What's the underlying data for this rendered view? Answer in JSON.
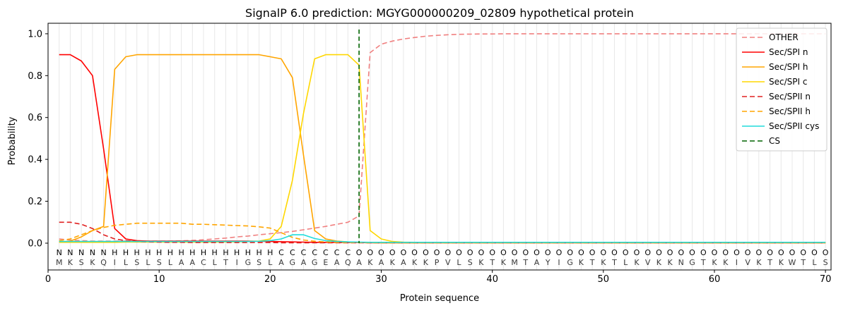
{
  "chart_data": {
    "type": "line",
    "title": "SignalP 6.0 prediction: MGYG000000209_02809 hypothetical protein",
    "xlabel": "Protein sequence",
    "ylabel": "Probability",
    "xlim": [
      0,
      70.5
    ],
    "ylim": [
      -0.128,
      1.05
    ],
    "grid": "vertical-per-residue",
    "legend_position": "upper right",
    "xticks": [
      {
        "value": 0,
        "label": "0"
      },
      {
        "value": 10,
        "label": "10"
      },
      {
        "value": 20,
        "label": "20"
      },
      {
        "value": 30,
        "label": "30"
      },
      {
        "value": 40,
        "label": "40"
      },
      {
        "value": 50,
        "label": "50"
      },
      {
        "value": 60,
        "label": "60"
      },
      {
        "value": 70,
        "label": "70"
      }
    ],
    "yticks": [
      {
        "value": 0.0,
        "label": "0.0"
      },
      {
        "value": 0.2,
        "label": "0.2"
      },
      {
        "value": 0.4,
        "label": "0.4"
      },
      {
        "value": 0.6,
        "label": "0.6"
      },
      {
        "value": 0.8,
        "label": "0.8"
      },
      {
        "value": 1.0,
        "label": "1.0"
      }
    ],
    "sequence": "MKSKQILSLSLAACLTIGSLAGAGEAQAKAKAKKPVLSKTKMTAYIGKTKTLKVKKNGTKKIVKTKWTLS",
    "regions": "NNNNNHHHHHHHHHHHHHHHCCCCCCCOOOOOOOOOOOOOOOOOOOOOOOOOOOOOOOOOOOOOOOOOOO",
    "cs": {
      "label": "CS",
      "position": 28,
      "color": "#006400",
      "dashed": true
    },
    "colors": {
      "grid": "#e8e8e8",
      "axis": "#000000",
      "sequence_letters": "#3a3a3a",
      "regions": {
        "N": "#ff0000",
        "H": "#ffa500",
        "C": "#ffd700",
        "O": "#999999"
      }
    },
    "series": [
      {
        "label": "OTHER",
        "color": "#f08080",
        "dashed": true,
        "values": [
          0.02,
          0.015,
          0.012,
          0.01,
          0.01,
          0.01,
          0.01,
          0.01,
          0.01,
          0.01,
          0.01,
          0.011,
          0.013,
          0.016,
          0.02,
          0.024,
          0.03,
          0.034,
          0.04,
          0.045,
          0.05,
          0.056,
          0.064,
          0.072,
          0.08,
          0.09,
          0.1,
          0.13,
          0.91,
          0.95,
          0.965,
          0.975,
          0.982,
          0.988,
          0.992,
          0.995,
          0.997,
          0.998,
          0.999,
          0.999,
          1,
          1,
          1,
          1,
          1,
          1,
          1,
          1,
          1,
          1,
          1,
          1,
          1,
          1,
          1,
          1,
          1,
          1,
          1,
          1,
          1,
          1,
          1,
          1,
          1,
          1,
          1,
          1,
          1,
          1
        ]
      },
      {
        "label": "Sec/SPI n",
        "color": "#ff0000",
        "dashed": false,
        "values": [
          0.9,
          0.9,
          0.87,
          0.8,
          0.45,
          0.07,
          0.02,
          0.012,
          0.01,
          0.01,
          0.01,
          0.01,
          0.01,
          0.01,
          0.01,
          0.01,
          0.01,
          0.01,
          0.009,
          0.008,
          0.007,
          0.006,
          0.005,
          0.004,
          0.004,
          0.003,
          0.003,
          0.003,
          0.002,
          0.002,
          0.002,
          0.002,
          0.002,
          0.002,
          0.002,
          0.002,
          0.002,
          0.002,
          0.002,
          0.002,
          0.002,
          0.002,
          0.002,
          0.002,
          0.002,
          0.002,
          0.002,
          0.002,
          0.002,
          0.002,
          0.002,
          0.002,
          0.002,
          0.002,
          0.002,
          0.002,
          0.002,
          0.002,
          0.002,
          0.002,
          0.002,
          0.002,
          0.002,
          0.002,
          0.002,
          0.002,
          0.002,
          0.002,
          0.002,
          0.002
        ]
      },
      {
        "label": "Sec/SPI h",
        "color": "#ffa500",
        "dashed": false,
        "values": [
          0.005,
          0.01,
          0.03,
          0.06,
          0.08,
          0.83,
          0.89,
          0.9,
          0.9,
          0.9,
          0.9,
          0.9,
          0.9,
          0.9,
          0.9,
          0.9,
          0.9,
          0.9,
          0.9,
          0.89,
          0.88,
          0.79,
          0.42,
          0.06,
          0.02,
          0.01,
          0.006,
          0.004,
          0.003,
          0.002,
          0.002,
          0.002,
          0.002,
          0.002,
          0.002,
          0.002,
          0.002,
          0.002,
          0.002,
          0.002,
          0.002,
          0.002,
          0.002,
          0.002,
          0.002,
          0.002,
          0.002,
          0.002,
          0.002,
          0.002,
          0.002,
          0.002,
          0.002,
          0.002,
          0.002,
          0.002,
          0.002,
          0.002,
          0.002,
          0.002,
          0.002,
          0.002,
          0.002,
          0.002,
          0.002,
          0.002,
          0.002,
          0.002,
          0.002,
          0.002
        ]
      },
      {
        "label": "Sec/SPI c",
        "color": "#ffd700",
        "dashed": false,
        "values": [
          0.004,
          0.004,
          0.004,
          0.004,
          0.004,
          0.004,
          0.005,
          0.005,
          0.005,
          0.005,
          0.005,
          0.005,
          0.005,
          0.005,
          0.005,
          0.006,
          0.006,
          0.008,
          0.01,
          0.02,
          0.08,
          0.3,
          0.62,
          0.88,
          0.9,
          0.9,
          0.9,
          0.85,
          0.06,
          0.02,
          0.008,
          0.005,
          0.004,
          0.004,
          0.004,
          0.004,
          0.004,
          0.004,
          0.004,
          0.004,
          0.004,
          0.004,
          0.004,
          0.004,
          0.004,
          0.004,
          0.004,
          0.004,
          0.004,
          0.004,
          0.004,
          0.004,
          0.004,
          0.004,
          0.004,
          0.004,
          0.004,
          0.004,
          0.004,
          0.004,
          0.004,
          0.004,
          0.004,
          0.004,
          0.004,
          0.004,
          0.004,
          0.004,
          0.004,
          0.004
        ]
      },
      {
        "label": "Sec/SPII n",
        "color": "#e02020",
        "dashed": true,
        "values": [
          0.1,
          0.1,
          0.09,
          0.07,
          0.04,
          0.02,
          0.012,
          0.008,
          0.006,
          0.005,
          0.004,
          0.004,
          0.003,
          0.003,
          0.003,
          0.003,
          0.003,
          0.003,
          0.003,
          0.003,
          0.002,
          0.002,
          0.002,
          0.002,
          0.002,
          0.002,
          0.002,
          0.002,
          0.002,
          0.002,
          0.002,
          0.002,
          0.002,
          0.002,
          0.002,
          0.002,
          0.002,
          0.002,
          0.002,
          0.002,
          0.002,
          0.002,
          0.002,
          0.002,
          0.002,
          0.002,
          0.002,
          0.002,
          0.002,
          0.002,
          0.002,
          0.002,
          0.002,
          0.002,
          0.002,
          0.002,
          0.002,
          0.002,
          0.002,
          0.002,
          0.002,
          0.002,
          0.002,
          0.002,
          0.002,
          0.002,
          0.002,
          0.002,
          0.002,
          0.002
        ]
      },
      {
        "label": "Sec/SPII h",
        "color": "#ffa500",
        "dashed": true,
        "values": [
          0.012,
          0.02,
          0.04,
          0.06,
          0.075,
          0.085,
          0.09,
          0.095,
          0.095,
          0.095,
          0.095,
          0.095,
          0.09,
          0.09,
          0.088,
          0.086,
          0.084,
          0.082,
          0.078,
          0.072,
          0.05,
          0.028,
          0.015,
          0.009,
          0.006,
          0.004,
          0.003,
          0.003,
          0.002,
          0.002,
          0.002,
          0.002,
          0.002,
          0.002,
          0.002,
          0.002,
          0.002,
          0.002,
          0.002,
          0.002,
          0.002,
          0.002,
          0.002,
          0.002,
          0.002,
          0.002,
          0.002,
          0.002,
          0.002,
          0.002,
          0.002,
          0.002,
          0.002,
          0.002,
          0.002,
          0.002,
          0.002,
          0.002,
          0.002,
          0.002,
          0.002,
          0.002,
          0.002,
          0.002,
          0.002,
          0.002,
          0.002,
          0.002,
          0.002,
          0.002
        ]
      },
      {
        "label": "Sec/SPII cys",
        "color": "#20dcdc",
        "dashed": false,
        "values": [
          0.008,
          0.008,
          0.008,
          0.008,
          0.008,
          0.008,
          0.008,
          0.008,
          0.008,
          0.008,
          0.008,
          0.008,
          0.008,
          0.008,
          0.008,
          0.008,
          0.008,
          0.008,
          0.009,
          0.012,
          0.02,
          0.04,
          0.04,
          0.022,
          0.012,
          0.008,
          0.006,
          0.005,
          0.004,
          0.004,
          0.004,
          0.004,
          0.004,
          0.004,
          0.004,
          0.004,
          0.004,
          0.004,
          0.004,
          0.004,
          0.004,
          0.004,
          0.004,
          0.004,
          0.004,
          0.004,
          0.004,
          0.004,
          0.004,
          0.004,
          0.004,
          0.004,
          0.004,
          0.004,
          0.004,
          0.004,
          0.004,
          0.004,
          0.004,
          0.004,
          0.004,
          0.004,
          0.004,
          0.004,
          0.004,
          0.004,
          0.004,
          0.004,
          0.004,
          0.004
        ]
      }
    ]
  }
}
